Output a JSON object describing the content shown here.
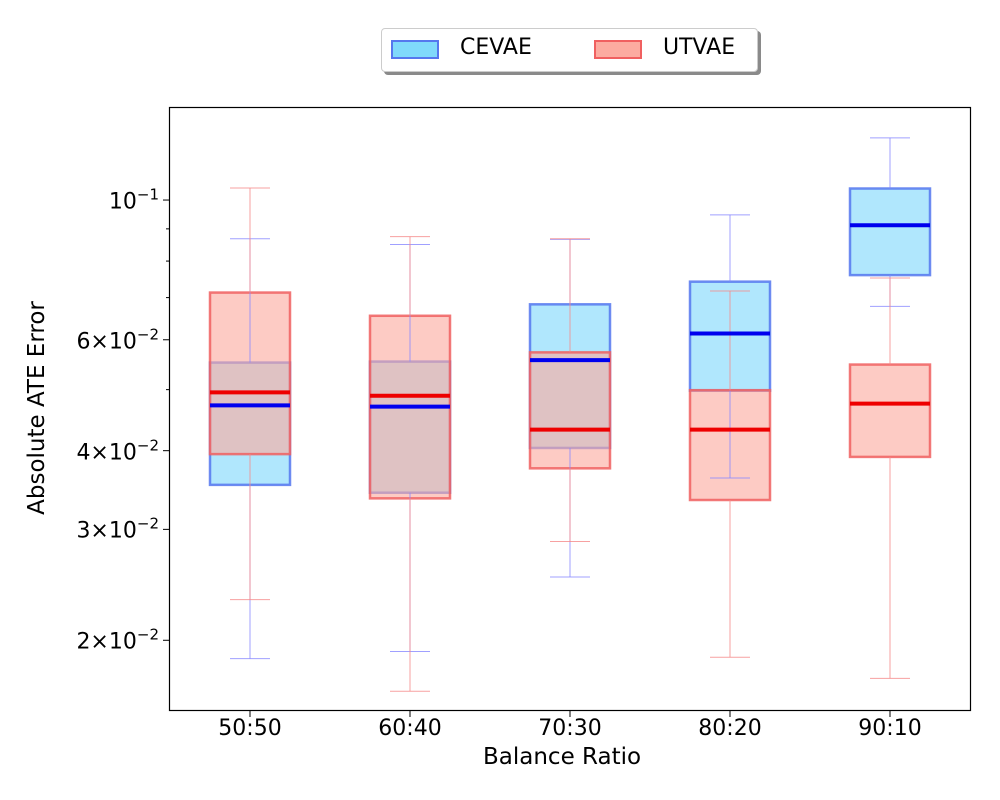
{
  "chart_data": {
    "type": "boxplot",
    "xlabel": "Balance Ratio",
    "ylabel": "Absolute ATE Error",
    "yscale": "log",
    "ylim": [
      0.0155,
      0.14
    ],
    "categories": [
      "50:50",
      "60:40",
      "70:30",
      "80:20",
      "90:10"
    ],
    "y_ticks": [
      {
        "value": 0.1,
        "base": "10",
        "exp": "−1",
        "mant": ""
      },
      {
        "value": 0.06,
        "base": "10",
        "exp": "−2",
        "mant": "6×"
      },
      {
        "value": 0.04,
        "base": "10",
        "exp": "−2",
        "mant": "4×"
      },
      {
        "value": 0.03,
        "base": "10",
        "exp": "−2",
        "mant": "3×"
      },
      {
        "value": 0.02,
        "base": "10",
        "exp": "−2",
        "mant": "2×"
      }
    ],
    "legend": {
      "position": "top-center"
    },
    "series": [
      {
        "name": "CEVAE",
        "fill": "#7fd9fb",
        "edge": "#5577ee",
        "median_color": "#0000ee",
        "whisker_color": "#8888ff",
        "boxes": [
          {
            "whislo": 0.0187,
            "q1": 0.0353,
            "med": 0.0472,
            "q3": 0.0552,
            "whishi": 0.0868
          },
          {
            "whislo": 0.0192,
            "q1": 0.0343,
            "med": 0.047,
            "q3": 0.0554,
            "whishi": 0.085
          },
          {
            "whislo": 0.0252,
            "q1": 0.0404,
            "med": 0.0557,
            "q3": 0.0683,
            "whishi": 0.0866
          },
          {
            "whislo": 0.0362,
            "q1": 0.0498,
            "med": 0.0614,
            "q3": 0.0742,
            "whishi": 0.0947
          },
          {
            "whislo": 0.0678,
            "q1": 0.076,
            "med": 0.0912,
            "q3": 0.1043,
            "whishi": 0.1255
          }
        ]
      },
      {
        "name": "UTVAE",
        "fill": "#fcaba0",
        "edge": "#f06060",
        "median_color": "#ee0000",
        "whisker_color": "#f58a8a",
        "boxes": [
          {
            "whislo": 0.0232,
            "q1": 0.0395,
            "med": 0.0495,
            "q3": 0.0713,
            "whishi": 0.1045
          },
          {
            "whislo": 0.0166,
            "q1": 0.0336,
            "med": 0.0489,
            "q3": 0.0655,
            "whishi": 0.0875
          },
          {
            "whislo": 0.0287,
            "q1": 0.0375,
            "med": 0.0432,
            "q3": 0.0573,
            "whishi": 0.0868
          },
          {
            "whislo": 0.0188,
            "q1": 0.0334,
            "med": 0.0432,
            "q3": 0.0499,
            "whishi": 0.0717
          },
          {
            "whislo": 0.0174,
            "q1": 0.0391,
            "med": 0.0475,
            "q3": 0.0548,
            "whishi": 0.0752
          }
        ]
      }
    ]
  }
}
